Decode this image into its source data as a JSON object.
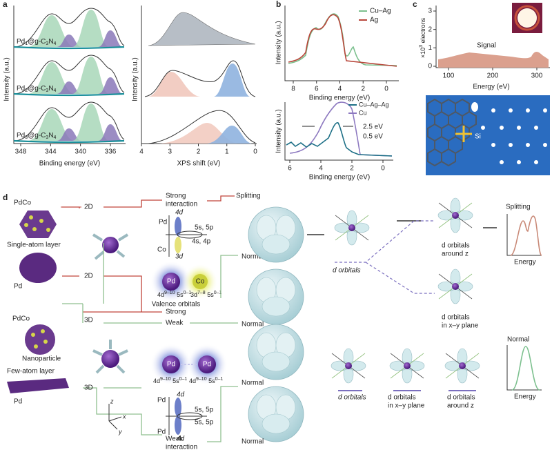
{
  "panel_a": {
    "letter": "a",
    "left": {
      "y_label": "Intensity (a.u.)",
      "x_label": "Binding energy (eV)",
      "xticks": [
        348,
        344,
        340,
        336
      ],
      "samples": [
        [
          "Pd",
          "1",
          "@g-C",
          "3",
          "N",
          "4"
        ],
        [
          "Pd",
          "2",
          "@g-C",
          "3",
          "N",
          "4"
        ],
        [
          "Pd",
          "3",
          "@g-C",
          "3",
          "N",
          "4"
        ]
      ]
    },
    "right": {
      "y_label": "Intensity (a.u.)",
      "x_label": "XPS shift (eV)",
      "xticks": [
        4,
        3,
        2,
        1,
        0
      ]
    }
  },
  "panel_b": {
    "letter": "b",
    "top": {
      "legend": [
        "Cu–Ag",
        "Ag"
      ],
      "y_label": "Intensity (a.u.)",
      "x_label": "Binding energy (eV)",
      "xticks": [
        8,
        6,
        4,
        2,
        0
      ]
    },
    "bottom": {
      "legend": [
        "Cu–Ag–Ag",
        "Cu"
      ],
      "annotations": [
        "2.5 eV",
        "0.5 eV"
      ],
      "y_label": "Intensity (a.u.)",
      "x_label": "Binding energy (eV)",
      "xticks": [
        6,
        4,
        2,
        0
      ]
    }
  },
  "panel_c": {
    "letter": "c",
    "y_label": [
      "×10",
      "3",
      " electrons"
    ],
    "yticks": [
      0,
      1,
      2,
      3
    ],
    "signal": "Signal",
    "x_label": "Energy (eV)",
    "xticks": [
      100,
      200,
      300
    ],
    "atom": "Si"
  },
  "panel_d": {
    "letter": "d",
    "top_alloy": "PdCo",
    "top_structure": "Single-atom layer",
    "top_metal": "Pd",
    "bottom_alloy": "PdCo",
    "bottom_structure": "Nanoparticle",
    "bottom_layer": "Few-atom layer",
    "bottom_metal": "Pd",
    "dims": [
      "2D",
      "2D",
      "3D",
      "3D"
    ],
    "strong_interaction": [
      "Strong",
      "interaction"
    ],
    "splitting_arrow": "Splitting",
    "orbital_top": {
      "pd": "Pd",
      "pd_4d": "4d",
      "pd_5s": "5s, 5p",
      "co_4s": "4s, 4p",
      "co": "Co",
      "co_3d": "3d"
    },
    "valence_pd": "Pd",
    "valence_co": "Co",
    "pd_config": [
      "4d",
      "9–10",
      " 5s",
      "0–1"
    ],
    "co_config": [
      "3d",
      "7–8",
      " 5s",
      "0–1"
    ],
    "valence_label": "Valence orbitals",
    "strong": "Strong",
    "weak": "Weak",
    "normal": [
      "Normal",
      "Normal",
      "Normal",
      "Normal"
    ],
    "d_orbitals": "d orbitals",
    "around_z": [
      "d orbitals",
      "around z"
    ],
    "xy_plane": [
      "d orbitals",
      "in x–y plane"
    ],
    "splitting_plot": "Splitting",
    "energy": [
      "Energy",
      "Energy"
    ],
    "normal_plot": "Normal",
    "pd_pair": [
      "Pd",
      "Pd"
    ],
    "pd_pair_config": [
      [
        "4d",
        "9–10",
        " 5s",
        "0–1"
      ],
      [
        "4d",
        "9–10",
        " 5s",
        "0–1"
      ]
    ],
    "orbital_bottom": {
      "pd_top": "Pd",
      "d_top": "4d",
      "s_top": "5s, 5p",
      "s_bottom": "5s, 5p",
      "d_bottom": "4d",
      "pd_bottom": "Pd"
    },
    "weak_interaction": [
      "Weak",
      "interaction"
    ],
    "low_d_orbitals": "d orbitals",
    "low_xy_plane": [
      "d orbitals",
      "in x–y plane"
    ],
    "low_around_z": [
      "d orbitals",
      "around z"
    ],
    "axes": [
      "z",
      "x",
      "y"
    ]
  }
}
